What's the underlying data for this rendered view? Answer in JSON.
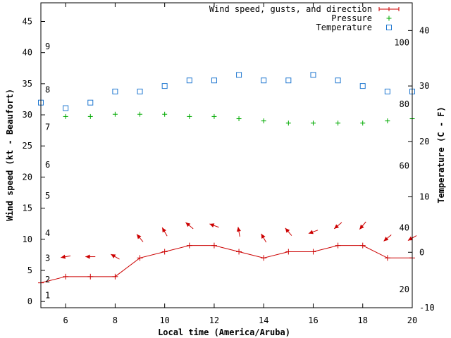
{
  "chart_data": {
    "type": "line",
    "title": "",
    "xlabel": "Local time (America/Aruba)",
    "ylabel": "Wind speed (kt - Beaufort)",
    "y2label": "Temperature (C - F)",
    "xlim": [
      5,
      20
    ],
    "ylim": [
      -1,
      48
    ],
    "y2lim": [
      -10,
      45
    ],
    "x_ticks": [
      6,
      8,
      10,
      12,
      14,
      16,
      18,
      20
    ],
    "y_ticks": [
      0,
      5,
      10,
      15,
      20,
      25,
      30,
      35,
      40,
      45
    ],
    "y2_ticks": [
      -10,
      0,
      10,
      20,
      30,
      40
    ],
    "beaufort_labels": [
      {
        "label": "1",
        "kt": 1
      },
      {
        "label": "2",
        "kt": 3.5
      },
      {
        "label": "3",
        "kt": 7
      },
      {
        "label": "4",
        "kt": 11
      },
      {
        "label": "5",
        "kt": 17
      },
      {
        "label": "6",
        "kt": 22
      },
      {
        "label": "7",
        "kt": 28
      },
      {
        "label": "8",
        "kt": 34
      },
      {
        "label": "9",
        "kt": 41
      }
    ],
    "fahrenheit_labels": [
      {
        "label": "20",
        "c": -6.7
      },
      {
        "label": "40",
        "c": 4.4
      },
      {
        "label": "60",
        "c": 15.6
      },
      {
        "label": "80",
        "c": 26.7
      },
      {
        "label": "100",
        "c": 37.8
      }
    ],
    "legend_position": "top-right",
    "series": [
      {
        "name": "Wind speed, gusts, and direction",
        "color": "#cc0000",
        "axis": "y",
        "x": [
          5,
          6,
          7,
          8,
          9,
          10,
          11,
          12,
          13,
          14,
          15,
          16,
          17,
          18,
          19,
          20
        ],
        "values": [
          3,
          4,
          4,
          4,
          7,
          8,
          9,
          9,
          8,
          7,
          8,
          8,
          9,
          9,
          7,
          7
        ],
        "direction_deg": [
          null,
          80,
          90,
          120,
          140,
          150,
          130,
          110,
          170,
          150,
          140,
          70,
          50,
          40,
          50,
          60
        ]
      },
      {
        "name": "Pressure",
        "color": "#00aa00",
        "axis": "y2",
        "x": [
          6,
          7,
          8,
          9,
          10,
          11,
          12,
          13,
          14,
          15,
          16,
          17,
          18,
          19,
          20
        ],
        "values": [
          24.5,
          24.5,
          24.9,
          24.9,
          24.9,
          24.5,
          24.5,
          24.1,
          23.7,
          23.3,
          23.3,
          23.3,
          23.3,
          23.7,
          24.1
        ]
      },
      {
        "name": "Temperature",
        "color": "#1f77d0",
        "axis": "y2",
        "x": [
          5,
          6,
          7,
          8,
          9,
          10,
          11,
          12,
          13,
          14,
          15,
          16,
          17,
          18,
          19,
          20
        ],
        "values": [
          27,
          26,
          27,
          29,
          29,
          30,
          31,
          31,
          32,
          31,
          31,
          32,
          31,
          30,
          29,
          29
        ]
      }
    ]
  }
}
